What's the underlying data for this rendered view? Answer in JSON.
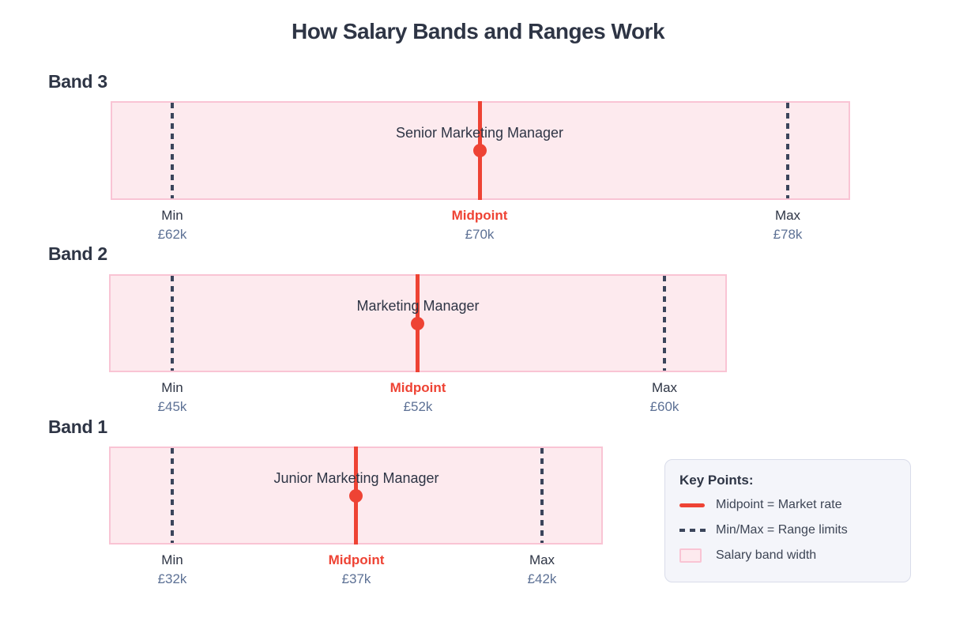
{
  "title": "How Salary Bands and Ranges Work",
  "colors": {
    "accent_red": "#ee4334",
    "band_fill": "#fdeaee",
    "band_border": "#f9c4d4",
    "dash": "#3b455b",
    "dark": "#2e3545",
    "muted": "#5d7195",
    "legend_bg": "#f4f5fa",
    "legend_border": "#d9dcea"
  },
  "bands": [
    {
      "label": "Band 3",
      "role": "Senior Marketing Manager",
      "min_label": "Min",
      "min_value": "£62k",
      "mid_label": "Midpoint",
      "mid_value": "£70k",
      "max_label": "Max",
      "max_value": "£78k"
    },
    {
      "label": "Band 2",
      "role": "Marketing Manager",
      "min_label": "Min",
      "min_value": "£45k",
      "mid_label": "Midpoint",
      "mid_value": "£52k",
      "max_label": "Max",
      "max_value": "£60k"
    },
    {
      "label": "Band 1",
      "role": "Junior Marketing Manager",
      "min_label": "Min",
      "min_value": "£32k",
      "mid_label": "Midpoint",
      "mid_value": "£37k",
      "max_label": "Max",
      "max_value": "£42k"
    }
  ],
  "legend": {
    "title": "Key Points:",
    "items": [
      {
        "swatch": "midpoint-line",
        "text": "Midpoint = Market rate"
      },
      {
        "swatch": "minmax-dash",
        "text": "Min/Max = Range limits"
      },
      {
        "swatch": "band-width",
        "text": "Salary band width"
      }
    ]
  },
  "chart_data": {
    "type": "bar",
    "title": "How Salary Bands and Ranges Work",
    "unit": "£k (GBP thousands)",
    "bands": [
      {
        "name": "Band 3",
        "role": "Senior Marketing Manager",
        "min": 62,
        "midpoint": 70,
        "max": 78
      },
      {
        "name": "Band 2",
        "role": "Marketing Manager",
        "min": 45,
        "midpoint": 52,
        "max": 60
      },
      {
        "name": "Band 1",
        "role": "Junior Marketing Manager",
        "min": 32,
        "midpoint": 37,
        "max": 42
      }
    ],
    "legend_position": "bottom-right",
    "grid": false
  }
}
